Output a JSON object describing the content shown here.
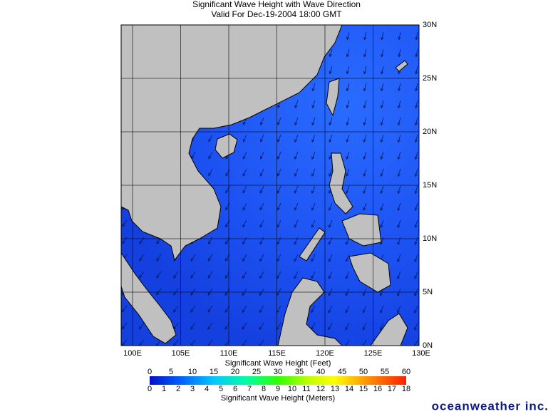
{
  "map": {
    "title": "Significant Wave Height with Wave Direction",
    "subtitle": "Valid For Dec-19-2004 18:00 GMT",
    "lon_labels": [
      "100E",
      "105E",
      "110E",
      "115E",
      "120E",
      "125E",
      "130E"
    ],
    "lat_labels": [
      "30N",
      "25N",
      "20N",
      "15N",
      "10N",
      "5N",
      "0N"
    ],
    "feet_label": "Significant Wave Height (Feet)",
    "feet_ticks": [
      0,
      5,
      10,
      15,
      20,
      25,
      30,
      35,
      40,
      45,
      50,
      55,
      60
    ],
    "meters_label": "Significant Wave Height (Meters)",
    "meters_ticks": [
      0,
      1,
      2,
      3,
      4,
      5,
      6,
      7,
      8,
      9,
      10,
      11,
      12,
      13,
      14,
      15,
      16,
      17,
      18
    ]
  },
  "logo": "oceanweather inc."
}
